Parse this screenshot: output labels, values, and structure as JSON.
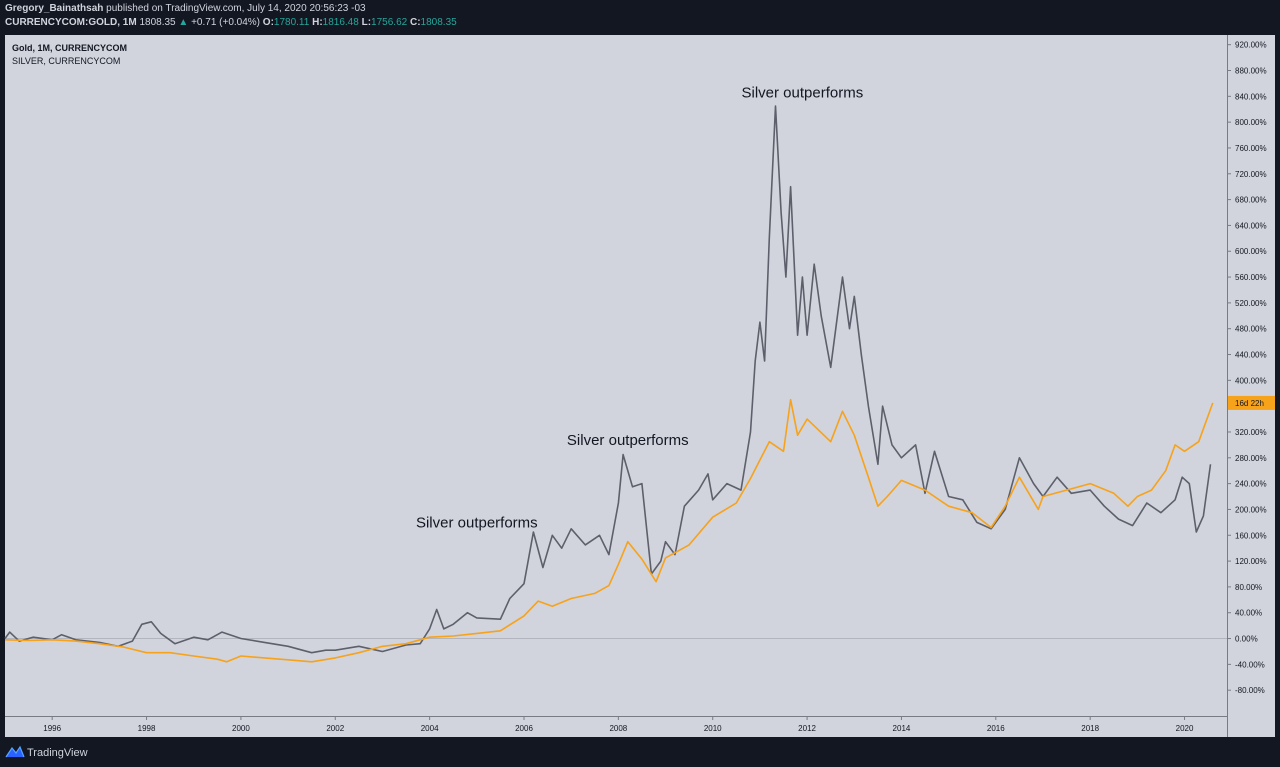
{
  "header": {
    "publisher_name": "Gregory_Bainathsah",
    "publisher_text": "published on TradingView.com, July 14, 2020 20:56:23 -03",
    "symbol": "CURRENCYCOM:GOLD, 1M",
    "last": "1808.35",
    "change": "+0.71 (+0.04%)",
    "o_label": "O:",
    "o_value": "1780.11",
    "h_label": "H:",
    "h_value": "1816.48",
    "l_label": "L:",
    "l_value": "1756.62",
    "c_label": "C:",
    "c_value": "1808.35"
  },
  "footer": {
    "brand": "TradingView",
    "logo_icon": "tradingview-logo-icon"
  },
  "chart_data": {
    "type": "line",
    "legend": [
      {
        "text": "Gold, 1M, CURRENCYCOM",
        "bold": true
      },
      {
        "text": "SILVER, CURRENCYCOM",
        "bold": false
      }
    ],
    "x_ticks": [
      "1996",
      "1998",
      "2000",
      "2002",
      "2004",
      "2006",
      "2008",
      "2010",
      "2012",
      "2014",
      "2016",
      "2018",
      "2020"
    ],
    "xlim": [
      1995.0,
      2020.9
    ],
    "y_ticks": [
      "920.00%",
      "880.00%",
      "840.00%",
      "800.00%",
      "760.00%",
      "720.00%",
      "680.00%",
      "640.00%",
      "600.00%",
      "560.00%",
      "520.00%",
      "480.00%",
      "440.00%",
      "400.00%",
      "360.00%",
      "320.00%",
      "280.00%",
      "240.00%",
      "200.00%",
      "160.00%",
      "120.00%",
      "80.00%",
      "40.00%",
      "0.00%",
      "-40.00%",
      "-80.00%"
    ],
    "ylim": [
      -120,
      935
    ],
    "ylabel_unit": "%",
    "baseline": 0,
    "last_value_label": "16d 22h",
    "annotations": [
      {
        "text": "Silver outperforms",
        "x": 2005.0,
        "y": 172
      },
      {
        "text": "Silver outperforms",
        "x": 2008.2,
        "y": 300
      },
      {
        "text": "Silver outperforms",
        "x": 2011.9,
        "y": 838
      }
    ],
    "colors": {
      "background": "#d1d4dc",
      "gold": "#f7a21b",
      "silver": "#5d606b",
      "baseline": "#b2b5be"
    },
    "series": [
      {
        "name": "Gold",
        "color": "#f7a21b",
        "points": [
          [
            1995.0,
            -2
          ],
          [
            1995.5,
            -3
          ],
          [
            1996.0,
            -2
          ],
          [
            1996.5,
            -4
          ],
          [
            1997.0,
            -8
          ],
          [
            1997.5,
            -13
          ],
          [
            1998.0,
            -22
          ],
          [
            1998.5,
            -22
          ],
          [
            1999.0,
            -27
          ],
          [
            1999.5,
            -32
          ],
          [
            1999.7,
            -36
          ],
          [
            2000.0,
            -27
          ],
          [
            2000.5,
            -30
          ],
          [
            2001.0,
            -33
          ],
          [
            2001.5,
            -36
          ],
          [
            2002.0,
            -30
          ],
          [
            2002.5,
            -22
          ],
          [
            2003.0,
            -12
          ],
          [
            2003.5,
            -8
          ],
          [
            2004.0,
            2
          ],
          [
            2004.5,
            4
          ],
          [
            2005.0,
            8
          ],
          [
            2005.5,
            12
          ],
          [
            2006.0,
            35
          ],
          [
            2006.3,
            58
          ],
          [
            2006.6,
            50
          ],
          [
            2007.0,
            62
          ],
          [
            2007.5,
            70
          ],
          [
            2007.8,
            82
          ],
          [
            2008.0,
            115
          ],
          [
            2008.2,
            150
          ],
          [
            2008.5,
            123
          ],
          [
            2008.8,
            88
          ],
          [
            2009.0,
            125
          ],
          [
            2009.5,
            145
          ],
          [
            2010.0,
            188
          ],
          [
            2010.5,
            210
          ],
          [
            2010.8,
            248
          ],
          [
            2011.2,
            305
          ],
          [
            2011.5,
            290
          ],
          [
            2011.65,
            370
          ],
          [
            2011.8,
            315
          ],
          [
            2012.0,
            340
          ],
          [
            2012.5,
            305
          ],
          [
            2012.75,
            352
          ],
          [
            2013.0,
            315
          ],
          [
            2013.3,
            250
          ],
          [
            2013.5,
            205
          ],
          [
            2013.7,
            220
          ],
          [
            2014.0,
            245
          ],
          [
            2014.5,
            230
          ],
          [
            2015.0,
            205
          ],
          [
            2015.5,
            195
          ],
          [
            2015.9,
            172
          ],
          [
            2016.2,
            205
          ],
          [
            2016.5,
            250
          ],
          [
            2016.9,
            200
          ],
          [
            2017.0,
            220
          ],
          [
            2017.5,
            230
          ],
          [
            2018.0,
            240
          ],
          [
            2018.5,
            225
          ],
          [
            2018.8,
            205
          ],
          [
            2019.0,
            220
          ],
          [
            2019.3,
            230
          ],
          [
            2019.6,
            260
          ],
          [
            2019.8,
            300
          ],
          [
            2020.0,
            290
          ],
          [
            2020.3,
            305
          ],
          [
            2020.6,
            365
          ]
        ]
      },
      {
        "name": "Silver",
        "color": "#5d606b",
        "points": [
          [
            1995.0,
            0
          ],
          [
            1995.1,
            10
          ],
          [
            1995.3,
            -4
          ],
          [
            1995.6,
            2
          ],
          [
            1996.0,
            -2
          ],
          [
            1996.2,
            6
          ],
          [
            1996.5,
            -2
          ],
          [
            1997.0,
            -6
          ],
          [
            1997.4,
            -12
          ],
          [
            1997.7,
            -4
          ],
          [
            1997.9,
            22
          ],
          [
            1998.1,
            26
          ],
          [
            1998.3,
            8
          ],
          [
            1998.6,
            -8
          ],
          [
            1999.0,
            2
          ],
          [
            1999.3,
            -2
          ],
          [
            1999.6,
            10
          ],
          [
            2000.0,
            0
          ],
          [
            2000.5,
            -6
          ],
          [
            2001.0,
            -12
          ],
          [
            2001.5,
            -22
          ],
          [
            2001.8,
            -18
          ],
          [
            2002.0,
            -18
          ],
          [
            2002.5,
            -12
          ],
          [
            2003.0,
            -20
          ],
          [
            2003.5,
            -10
          ],
          [
            2003.8,
            -8
          ],
          [
            2004.0,
            15
          ],
          [
            2004.15,
            45
          ],
          [
            2004.3,
            15
          ],
          [
            2004.5,
            22
          ],
          [
            2004.8,
            40
          ],
          [
            2005.0,
            32
          ],
          [
            2005.5,
            30
          ],
          [
            2005.7,
            62
          ],
          [
            2006.0,
            85
          ],
          [
            2006.2,
            165
          ],
          [
            2006.4,
            110
          ],
          [
            2006.6,
            160
          ],
          [
            2006.8,
            140
          ],
          [
            2007.0,
            170
          ],
          [
            2007.3,
            145
          ],
          [
            2007.6,
            160
          ],
          [
            2007.8,
            130
          ],
          [
            2008.0,
            210
          ],
          [
            2008.1,
            285
          ],
          [
            2008.3,
            235
          ],
          [
            2008.5,
            240
          ],
          [
            2008.7,
            100
          ],
          [
            2008.9,
            120
          ],
          [
            2009.0,
            150
          ],
          [
            2009.2,
            130
          ],
          [
            2009.4,
            205
          ],
          [
            2009.7,
            230
          ],
          [
            2009.9,
            255
          ],
          [
            2010.0,
            215
          ],
          [
            2010.3,
            240
          ],
          [
            2010.6,
            230
          ],
          [
            2010.8,
            320
          ],
          [
            2010.9,
            430
          ],
          [
            2011.0,
            490
          ],
          [
            2011.1,
            430
          ],
          [
            2011.2,
            620
          ],
          [
            2011.33,
            825
          ],
          [
            2011.45,
            660
          ],
          [
            2011.55,
            560
          ],
          [
            2011.65,
            700
          ],
          [
            2011.8,
            470
          ],
          [
            2011.9,
            560
          ],
          [
            2012.0,
            470
          ],
          [
            2012.15,
            580
          ],
          [
            2012.3,
            500
          ],
          [
            2012.5,
            420
          ],
          [
            2012.75,
            560
          ],
          [
            2012.9,
            480
          ],
          [
            2013.0,
            530
          ],
          [
            2013.15,
            440
          ],
          [
            2013.3,
            360
          ],
          [
            2013.5,
            270
          ],
          [
            2013.6,
            360
          ],
          [
            2013.8,
            300
          ],
          [
            2014.0,
            280
          ],
          [
            2014.3,
            300
          ],
          [
            2014.5,
            225
          ],
          [
            2014.7,
            290
          ],
          [
            2015.0,
            220
          ],
          [
            2015.3,
            215
          ],
          [
            2015.6,
            180
          ],
          [
            2015.9,
            170
          ],
          [
            2016.2,
            200
          ],
          [
            2016.5,
            280
          ],
          [
            2016.8,
            240
          ],
          [
            2017.0,
            220
          ],
          [
            2017.3,
            250
          ],
          [
            2017.6,
            225
          ],
          [
            2018.0,
            230
          ],
          [
            2018.3,
            205
          ],
          [
            2018.6,
            185
          ],
          [
            2018.9,
            175
          ],
          [
            2019.2,
            210
          ],
          [
            2019.5,
            195
          ],
          [
            2019.8,
            215
          ],
          [
            2019.95,
            250
          ],
          [
            2020.1,
            240
          ],
          [
            2020.25,
            165
          ],
          [
            2020.4,
            190
          ],
          [
            2020.55,
            270
          ]
        ]
      }
    ]
  }
}
